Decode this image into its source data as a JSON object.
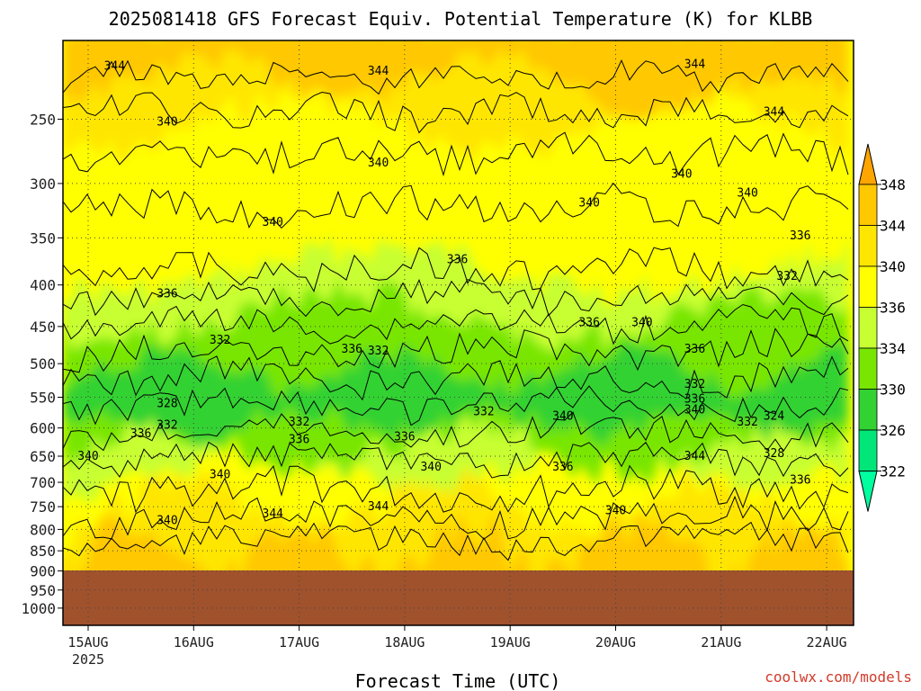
{
  "chart_data": {
    "type": "heatmap",
    "title": "2025081418 GFS Forecast Equiv. Potential Temperature (K) for KLBB",
    "xlabel": "Forecast Time (UTC)",
    "ylabel": "",
    "x_ticks": [
      "15AUG",
      "16AUG",
      "17AUG",
      "18AUG",
      "19AUG",
      "20AUG",
      "21AUG",
      "22AUG"
    ],
    "x_year_label": "2025",
    "y_ticks": [
      "250",
      "300",
      "350",
      "400",
      "450",
      "500",
      "550",
      "600",
      "650",
      "700",
      "750",
      "800",
      "850",
      "900",
      "950",
      "1000"
    ],
    "y_axis": "pressure (hPa), log scale, top 200, bottom 1050",
    "underground_below_hPa": 900,
    "colorbar_levels": [
      "348",
      "344",
      "340",
      "336",
      "334",
      "330",
      "326",
      "322"
    ],
    "colorbar_colors": {
      "above_348": "#ffa500",
      "344_348": "#ffc800",
      "340_344": "#ffe600",
      "336_340": "#ffff00",
      "334_336": "#c8ff32",
      "330_334": "#78e600",
      "326_330": "#32d232",
      "322_326": "#00e678",
      "below_322": "#00ff9f"
    },
    "underground_color": "#a0522d",
    "contour_labels": [
      {
        "value": "344",
        "time": "15AUG 06Z",
        "hPa": 215
      },
      {
        "value": "344",
        "time": "17AUG 18Z",
        "hPa": 218
      },
      {
        "value": "344",
        "time": "20AUG 18Z",
        "hPa": 214
      },
      {
        "value": "344",
        "time": "21AUG 12Z",
        "hPa": 245
      },
      {
        "value": "340",
        "time": "15AUG 18Z",
        "hPa": 252
      },
      {
        "value": "340",
        "time": "17AUG 18Z",
        "hPa": 283
      },
      {
        "value": "340",
        "time": "16AUG 18Z",
        "hPa": 335
      },
      {
        "value": "340",
        "time": "20AUG 15Z",
        "hPa": 292
      },
      {
        "value": "340",
        "time": "21AUG 06Z",
        "hPa": 308
      },
      {
        "value": "340",
        "time": "19AUG 18Z",
        "hPa": 317
      },
      {
        "value": "336",
        "time": "18AUG 12Z",
        "hPa": 372
      },
      {
        "value": "336",
        "time": "21AUG 18Z",
        "hPa": 348
      },
      {
        "value": "336",
        "time": "15AUG 18Z",
        "hPa": 410
      },
      {
        "value": "332",
        "time": "21AUG 15Z",
        "hPa": 390
      },
      {
        "value": "332",
        "time": "16AUG 06Z",
        "hPa": 468
      },
      {
        "value": "336",
        "time": "17AUG 12Z",
        "hPa": 480
      },
      {
        "value": "332",
        "time": "17AUG 18Z",
        "hPa": 482
      },
      {
        "value": "336",
        "time": "19AUG 18Z",
        "hPa": 445
      },
      {
        "value": "340",
        "time": "20AUG 06Z",
        "hPa": 445
      },
      {
        "value": "336",
        "time": "20AUG 18Z",
        "hPa": 480
      },
      {
        "value": "328",
        "time": "15AUG 18Z",
        "hPa": 560
      },
      {
        "value": "332",
        "time": "15AUG 18Z",
        "hPa": 595
      },
      {
        "value": "336",
        "time": "15AUG 12Z",
        "hPa": 610
      },
      {
        "value": "332",
        "time": "17AUG 00Z",
        "hPa": 590
      },
      {
        "value": "336",
        "time": "17AUG 00Z",
        "hPa": 620
      },
      {
        "value": "336",
        "time": "18AUG 00Z",
        "hPa": 615
      },
      {
        "value": "332",
        "time": "18AUG 18Z",
        "hPa": 573
      },
      {
        "value": "340",
        "time": "19AUG 12Z",
        "hPa": 580
      },
      {
        "value": "332",
        "time": "20AUG 18Z",
        "hPa": 530
      },
      {
        "value": "336",
        "time": "20AUG 18Z",
        "hPa": 553
      },
      {
        "value": "340",
        "time": "20AUG 18Z",
        "hPa": 570
      },
      {
        "value": "332",
        "time": "21AUG 06Z",
        "hPa": 590
      },
      {
        "value": "324",
        "time": "21AUG 12Z",
        "hPa": 580
      },
      {
        "value": "328",
        "time": "21AUG 12Z",
        "hPa": 645
      },
      {
        "value": "336",
        "time": "21AUG 18Z",
        "hPa": 695
      },
      {
        "value": "344",
        "time": "20AUG 18Z",
        "hPa": 650
      },
      {
        "value": "340",
        "time": "15AUG 00Z",
        "hPa": 650
      },
      {
        "value": "340",
        "time": "16AUG 06Z",
        "hPa": 685
      },
      {
        "value": "340",
        "time": "18AUG 06Z",
        "hPa": 670
      },
      {
        "value": "336",
        "time": "19AUG 12Z",
        "hPa": 670
      },
      {
        "value": "344",
        "time": "16AUG 18Z",
        "hPa": 765
      },
      {
        "value": "344",
        "time": "17AUG 18Z",
        "hPa": 750
      },
      {
        "value": "340",
        "time": "15AUG 18Z",
        "hPa": 780
      },
      {
        "value": "340",
        "time": "20AUG 00Z",
        "hPa": 758
      }
    ]
  },
  "credit": "coolwx.com/models"
}
